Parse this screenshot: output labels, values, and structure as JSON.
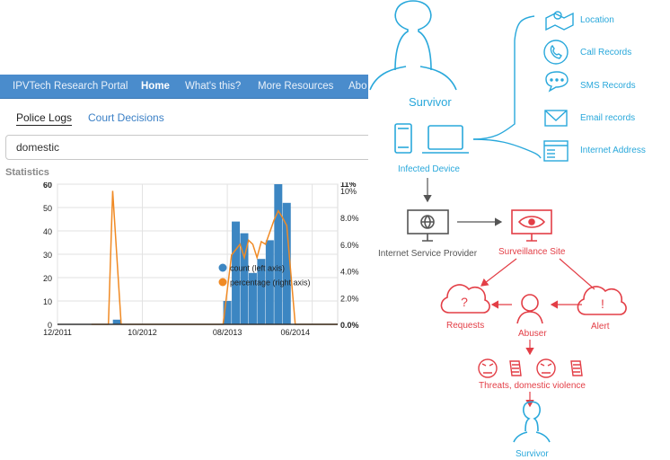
{
  "nav": {
    "brand": "IPVTech Research Portal",
    "items": [
      "Home",
      "What's this?",
      "More Resources",
      "Abo"
    ]
  },
  "tabs": {
    "active": "Police Logs",
    "other": "Court Decisions"
  },
  "search": {
    "value": "domestic"
  },
  "section_title": "Statistics",
  "chart_data": {
    "type": "bar+line",
    "legend": [
      "count (left axis)",
      "percentage (right axis)"
    ],
    "x_ticks": [
      "12/2011",
      "10/2012",
      "08/2013",
      "06/2014"
    ],
    "y_left_ticks": [
      "60",
      "50",
      "40",
      "30",
      "20",
      "10",
      "0"
    ],
    "y_right_ticks": [
      "11%",
      "10%",
      "8.0%",
      "6.0%",
      "4.0%",
      "2.0%",
      "0.0%"
    ],
    "ylim_left": [
      0,
      60
    ],
    "ylim_right": [
      0,
      10.5
    ],
    "bars": [
      {
        "month": 7,
        "count": 2
      },
      {
        "month": 20,
        "count": 10
      },
      {
        "month": 21,
        "count": 44
      },
      {
        "month": 22,
        "count": 39
      },
      {
        "month": 23,
        "count": 22
      },
      {
        "month": 24,
        "count": 28
      },
      {
        "month": 25,
        "count": 36
      },
      {
        "month": 26,
        "count": 60
      },
      {
        "month": 27,
        "count": 52
      }
    ],
    "line": [
      {
        "month": 4,
        "pct": 0
      },
      {
        "month": 6,
        "pct": 0
      },
      {
        "month": 6.5,
        "pct": 10.0
      },
      {
        "month": 7.5,
        "pct": 0
      },
      {
        "month": 19.5,
        "pct": 0
      },
      {
        "month": 20.5,
        "pct": 5.2
      },
      {
        "month": 21.5,
        "pct": 6.0
      },
      {
        "month": 22,
        "pct": 5.0
      },
      {
        "month": 22.5,
        "pct": 6.3
      },
      {
        "month": 23,
        "pct": 6.0
      },
      {
        "month": 23.5,
        "pct": 5.0
      },
      {
        "month": 24,
        "pct": 6.2
      },
      {
        "month": 24.5,
        "pct": 6.0
      },
      {
        "month": 25.5,
        "pct": 7.8
      },
      {
        "month": 26,
        "pct": 8.5
      },
      {
        "month": 26.5,
        "pct": 8.0
      },
      {
        "month": 27,
        "pct": 7.4
      },
      {
        "month": 28,
        "pct": 0
      },
      {
        "month": 33,
        "pct": 0
      }
    ],
    "colors": {
      "bar": "#3c86c2",
      "line": "#f08a24"
    }
  },
  "diagram": {
    "survivor_top": "Survivor",
    "infected_device": "Infected Device",
    "data_items": [
      "Location",
      "Call Records",
      "SMS Records",
      "Email records",
      "Internet Address"
    ],
    "isp": "Internet Service Provider",
    "surveillance_site": "Surveillance Site",
    "requests": "Requests",
    "alert": "Alert",
    "abuser": "Abuser",
    "threats": "Threats, domestic violence",
    "survivor_bottom": "Survivor",
    "colors": {
      "blue": "#29a8db",
      "red": "#e33e46",
      "grey": "#555555"
    }
  }
}
